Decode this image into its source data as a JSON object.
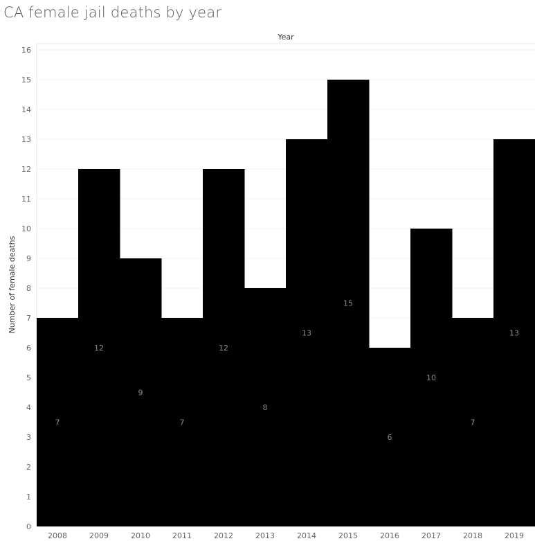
{
  "chart_data": {
    "type": "bar",
    "title": "CA female jail deaths by year",
    "column_header": "Year",
    "ylabel": "Number of female deaths",
    "categories": [
      "2008",
      "2009",
      "2010",
      "2011",
      "2012",
      "2013",
      "2014",
      "2015",
      "2016",
      "2017",
      "2018",
      "2019"
    ],
    "values": [
      7,
      12,
      9,
      7,
      12,
      8,
      13,
      15,
      6,
      10,
      7,
      13
    ],
    "ylim": [
      0,
      16
    ],
    "yticks": [
      "0",
      "1",
      "2",
      "3",
      "4",
      "5",
      "6",
      "7",
      "8",
      "9",
      "10",
      "11",
      "12",
      "13",
      "14",
      "15",
      "16"
    ],
    "grid": true,
    "bar_color": "#000000",
    "label_color": "#8a8a8a"
  }
}
